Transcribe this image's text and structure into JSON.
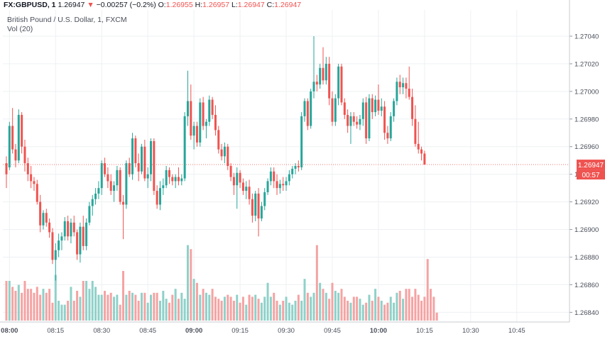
{
  "header": {
    "symbol": "FX:GBPUSD, 1",
    "last": "1.26947",
    "down_arrow": "▼",
    "change": "−0.00257 (−0.2%)",
    "o_label": "O:",
    "o_value": "1.26955",
    "h_label": "H:",
    "h_value": "1.26957",
    "l_label": "L:",
    "l_value": "1.26947",
    "c_label": "C:",
    "c_value": "1.26947",
    "title": "British Pound / U.S. Dollar, 1, FXCM",
    "volume_label": "Vol (20)"
  },
  "price_tag": {
    "price": "1.26947",
    "countdown": "00:57"
  },
  "colors": {
    "up": "#26a69a",
    "down": "#ef5350",
    "up_vol": "#8fd1c9",
    "down_vol": "#f5a3a3",
    "grid": "#eef0f3",
    "axis_text": "#4a4f5a"
  },
  "chart_data": {
    "type": "candlestick",
    "interval": "1 minute",
    "y_ticks": [
      "1.27040",
      "1.27020",
      "1.27000",
      "1.26980",
      "1.26960",
      "1.26940",
      "1.26920",
      "1.26900",
      "1.26880",
      "1.26860",
      "1.26840"
    ],
    "x_ticks": [
      "08:00",
      "08:15",
      "08:30",
      "08:45",
      "09:00",
      "09:15",
      "09:30",
      "09:45",
      "10:00",
      "10:15",
      "10:30",
      "10:45"
    ],
    "ylim": [
      1.26833,
      1.27059
    ],
    "grid": true,
    "start_time": "07:59",
    "candles": [
      [
        1.26948,
        1.26953,
        1.2693,
        1.2694
      ],
      [
        1.26945,
        1.26978,
        1.26943,
        1.26975
      ],
      [
        1.26975,
        1.26988,
        1.26955,
        1.26958
      ],
      [
        1.26958,
        1.26962,
        1.26945,
        1.2695
      ],
      [
        1.2695,
        1.26987,
        1.26948,
        1.26983
      ],
      [
        1.26983,
        1.26985,
        1.26955,
        1.2696
      ],
      [
        1.2696,
        1.26965,
        1.26942,
        1.26948
      ],
      [
        1.26948,
        1.26952,
        1.26935,
        1.2694
      ],
      [
        1.2694,
        1.26946,
        1.2693,
        1.26935
      ],
      [
        1.26935,
        1.26938,
        1.26928,
        1.26933
      ],
      [
        1.26933,
        1.26936,
        1.26918,
        1.2692
      ],
      [
        1.2692,
        1.26925,
        1.26898,
        1.26903
      ],
      [
        1.26903,
        1.26914,
        1.269,
        1.26912
      ],
      [
        1.26912,
        1.26915,
        1.26902,
        1.26905
      ],
      [
        1.26905,
        1.26908,
        1.26894,
        1.26898
      ],
      [
        1.26898,
        1.26901,
        1.26875,
        1.26878
      ],
      [
        1.26878,
        1.2689,
        1.26863,
        1.26885
      ],
      [
        1.26885,
        1.26897,
        1.2688,
        1.26892
      ],
      [
        1.26892,
        1.26898,
        1.26885,
        1.26895
      ],
      [
        1.26895,
        1.26909,
        1.26892,
        1.26906
      ],
      [
        1.26906,
        1.2691,
        1.26892,
        1.26895
      ],
      [
        1.26895,
        1.26908,
        1.2689,
        1.26905
      ],
      [
        1.26905,
        1.2691,
        1.26895,
        1.26898
      ],
      [
        1.26898,
        1.269,
        1.26878,
        1.26882
      ],
      [
        1.26882,
        1.26905,
        1.26876,
        1.26902
      ],
      [
        1.26902,
        1.2691,
        1.26885,
        1.26888
      ],
      [
        1.26888,
        1.26908,
        1.26885,
        1.26905
      ],
      [
        1.26905,
        1.2692,
        1.26903,
        1.26917
      ],
      [
        1.26917,
        1.26925,
        1.2691,
        1.26922
      ],
      [
        1.26922,
        1.2693,
        1.26918,
        1.26926
      ],
      [
        1.26926,
        1.26935,
        1.26922,
        1.2693
      ],
      [
        1.2693,
        1.2695,
        1.26925,
        1.26948
      ],
      [
        1.26948,
        1.26952,
        1.26938,
        1.2694
      ],
      [
        1.2694,
        1.26945,
        1.2693,
        1.26935
      ],
      [
        1.26935,
        1.2694,
        1.26925,
        1.26928
      ],
      [
        1.26928,
        1.26935,
        1.2692,
        1.26932
      ],
      [
        1.26932,
        1.26946,
        1.26928,
        1.26943
      ],
      [
        1.26943,
        1.26945,
        1.26918,
        1.2692
      ],
      [
        1.2692,
        1.26925,
        1.26893,
        1.26918
      ],
      [
        1.26918,
        1.2695,
        1.26915,
        1.26948
      ],
      [
        1.26948,
        1.26952,
        1.26938,
        1.2694
      ],
      [
        1.2694,
        1.2697,
        1.26936,
        1.26966
      ],
      [
        1.26966,
        1.26968,
        1.26945,
        1.26948
      ],
      [
        1.26948,
        1.26955,
        1.26935,
        1.26942
      ],
      [
        1.26942,
        1.26962,
        1.2694,
        1.2696
      ],
      [
        1.2696,
        1.26965,
        1.26935,
        1.26937
      ],
      [
        1.26937,
        1.26945,
        1.2693,
        1.2694
      ],
      [
        1.2694,
        1.26966,
        1.26935,
        1.26964
      ],
      [
        1.26964,
        1.26966,
        1.26925,
        1.26928
      ],
      [
        1.26928,
        1.26932,
        1.26915,
        1.26918
      ],
      [
        1.26918,
        1.26935,
        1.26914,
        1.2693
      ],
      [
        1.2693,
        1.26937,
        1.26925,
        1.26932
      ],
      [
        1.26932,
        1.26946,
        1.2693,
        1.26943
      ],
      [
        1.26943,
        1.26945,
        1.26933,
        1.26938
      ],
      [
        1.26938,
        1.2694,
        1.26932,
        1.26935
      ],
      [
        1.26935,
        1.2694,
        1.2693,
        1.26938
      ],
      [
        1.26938,
        1.26945,
        1.26932,
        1.26935
      ],
      [
        1.26935,
        1.2694,
        1.26932,
        1.26937
      ],
      [
        1.26937,
        1.26985,
        1.26935,
        1.26982
      ],
      [
        1.26982,
        1.27015,
        1.26975,
        1.26993
      ],
      [
        1.26993,
        1.27005,
        1.26965,
        1.26968
      ],
      [
        1.26968,
        1.26978,
        1.26958,
        1.26975
      ],
      [
        1.26975,
        1.26978,
        1.2696,
        1.26963
      ],
      [
        1.26963,
        1.26995,
        1.2696,
        1.26992
      ],
      [
        1.26992,
        1.26996,
        1.26972,
        1.26975
      ],
      [
        1.26975,
        1.2698,
        1.26966,
        1.26978
      ],
      [
        1.26978,
        1.26997,
        1.26975,
        1.26994
      ],
      [
        1.26994,
        1.26996,
        1.2698,
        1.26983
      ],
      [
        1.26983,
        1.2699,
        1.26968,
        1.26972
      ],
      [
        1.26972,
        1.26975,
        1.26955,
        1.26958
      ],
      [
        1.26958,
        1.26962,
        1.2695,
        1.26953
      ],
      [
        1.26953,
        1.26963,
        1.26948,
        1.2696
      ],
      [
        1.2696,
        1.26962,
        1.26943,
        1.26946
      ],
      [
        1.26946,
        1.26948,
        1.26935,
        1.26938
      ],
      [
        1.26938,
        1.26941,
        1.26925,
        1.26932
      ],
      [
        1.26932,
        1.26945,
        1.26915,
        1.26941
      ],
      [
        1.26941,
        1.26943,
        1.2693,
        1.26934
      ],
      [
        1.26934,
        1.26937,
        1.26925,
        1.26928
      ],
      [
        1.26928,
        1.26935,
        1.26922,
        1.26931
      ],
      [
        1.26931,
        1.26936,
        1.26918,
        1.26922
      ],
      [
        1.26922,
        1.26926,
        1.26905,
        1.2691
      ],
      [
        1.2691,
        1.26928,
        1.26906,
        1.26926
      ],
      [
        1.26926,
        1.2693,
        1.26895,
        1.26908
      ],
      [
        1.26908,
        1.2692,
        1.26906,
        1.26917
      ],
      [
        1.26917,
        1.2693,
        1.26914,
        1.26927
      ],
      [
        1.26927,
        1.26937,
        1.26925,
        1.26935
      ],
      [
        1.26935,
        1.26945,
        1.26932,
        1.26942
      ],
      [
        1.26942,
        1.26945,
        1.2693,
        1.26935
      ],
      [
        1.26935,
        1.2694,
        1.26925,
        1.2693
      ],
      [
        1.2693,
        1.26936,
        1.26926,
        1.26933
      ],
      [
        1.26933,
        1.26938,
        1.26928,
        1.26932
      ],
      [
        1.26932,
        1.26938,
        1.26928,
        1.26935
      ],
      [
        1.26935,
        1.26943,
        1.26932,
        1.2694
      ],
      [
        1.2694,
        1.26946,
        1.26937,
        1.26944
      ],
      [
        1.26944,
        1.26948,
        1.2694,
        1.26946
      ],
      [
        1.26946,
        1.2695,
        1.26942,
        1.26945
      ],
      [
        1.26945,
        1.26985,
        1.26943,
        1.26982
      ],
      [
        1.26982,
        1.26995,
        1.26978,
        1.26993
      ],
      [
        1.26993,
        1.26995,
        1.26972,
        1.26975
      ],
      [
        1.26975,
        1.27002,
        1.26973,
        1.27
      ],
      [
        1.27,
        1.2704,
        1.26995,
        1.27007
      ],
      [
        1.27007,
        1.27012,
        1.27,
        1.27005
      ],
      [
        1.27005,
        1.2702,
        1.27002,
        1.27017
      ],
      [
        1.27017,
        1.27032,
        1.27005,
        1.27008
      ],
      [
        1.27008,
        1.27025,
        1.27005,
        1.2702
      ],
      [
        1.2702,
        1.27025,
        1.2699,
        1.26995
      ],
      [
        1.26995,
        1.27,
        1.26975,
        1.26978
      ],
      [
        1.26978,
        1.26998,
        1.26975,
        1.26995
      ],
      [
        1.26995,
        1.2702,
        1.2699,
        1.27018
      ],
      [
        1.27018,
        1.2702,
        1.2699,
        1.26992
      ],
      [
        1.26992,
        1.26995,
        1.2698,
        1.26983
      ],
      [
        1.26983,
        1.26987,
        1.2697,
        1.26975
      ],
      [
        1.26975,
        1.26985,
        1.26962,
        1.26982
      ],
      [
        1.26982,
        1.26985,
        1.26975,
        1.26978
      ],
      [
        1.26978,
        1.26982,
        1.26973,
        1.26976
      ],
      [
        1.26976,
        1.26983,
        1.26972,
        1.2698
      ],
      [
        1.2698,
        1.26995,
        1.26975,
        1.26992
      ],
      [
        1.26992,
        1.26996,
        1.26962,
        1.26966
      ],
      [
        1.26966,
        1.26998,
        1.26964,
        1.26995
      ],
      [
        1.26995,
        1.26998,
        1.2698,
        1.26985
      ],
      [
        1.26985,
        1.26997,
        1.26982,
        1.26994
      ],
      [
        1.26994,
        1.27005,
        1.26983,
        1.26986
      ],
      [
        1.26986,
        1.26995,
        1.26982,
        1.26989
      ],
      [
        1.26989,
        1.26993,
        1.26965,
        1.2697
      ],
      [
        1.2697,
        1.26975,
        1.26962,
        1.26966
      ],
      [
        1.26966,
        1.26985,
        1.26964,
        1.26982
      ],
      [
        1.26982,
        1.26995,
        1.26978,
        1.26993
      ],
      [
        1.26993,
        1.2701,
        1.2699,
        1.27007
      ],
      [
        1.27007,
        1.27012,
        1.26998,
        1.27003
      ],
      [
        1.27003,
        1.2701,
        1.26998,
        1.27006
      ],
      [
        1.27006,
        1.2701,
        1.26995,
        1.27002
      ],
      [
        1.27002,
        1.27018,
        1.26994,
        1.26996
      ],
      [
        1.26996,
        1.27002,
        1.26975,
        1.2698
      ],
      [
        1.2698,
        1.2699,
        1.2696,
        1.26962
      ],
      [
        1.26962,
        1.26978,
        1.26955,
        1.26958
      ],
      [
        1.26958,
        1.2696,
        1.2695,
        1.26955
      ],
      [
        1.26955,
        1.26957,
        1.26947,
        1.26947
      ]
    ],
    "volumes": [
      20,
      20,
      17,
      15,
      18,
      14,
      20,
      16,
      16,
      14,
      17,
      13,
      16,
      14,
      16,
      9,
      23,
      10,
      8,
      8,
      10,
      17,
      10,
      15,
      12,
      20,
      20,
      16,
      20,
      17,
      13,
      13,
      15,
      13,
      14,
      12,
      13,
      8,
      25,
      13,
      15,
      14,
      13,
      10,
      14,
      14,
      9,
      13,
      14,
      14,
      10,
      15,
      11,
      9,
      13,
      16,
      11,
      14,
      11,
      38,
      36,
      21,
      19,
      13,
      16,
      14,
      13,
      16,
      12,
      11,
      10,
      12,
      13,
      12,
      10,
      13,
      9,
      12,
      8,
      13,
      12,
      13,
      11,
      9,
      12,
      19,
      12,
      14,
      10,
      8,
      10,
      12,
      9,
      8,
      10,
      13,
      10,
      21,
      14,
      12,
      14,
      38,
      19,
      16,
      14,
      11,
      19,
      15,
      14,
      16,
      12,
      10,
      9,
      12,
      12,
      11,
      8,
      9,
      13,
      10,
      16,
      12,
      10,
      8,
      9,
      12,
      9,
      14,
      15,
      11,
      16,
      16,
      12,
      16,
      13,
      10,
      12,
      31,
      16,
      12,
      4
    ],
    "last_price": 1.26947
  }
}
